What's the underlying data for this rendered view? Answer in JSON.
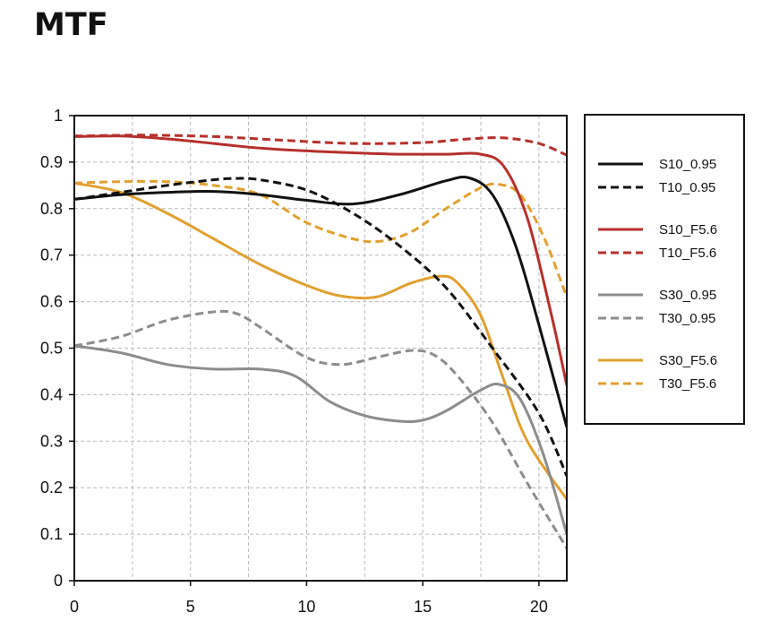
{
  "title": "MTF",
  "chart_data": {
    "type": "line",
    "title": "MTF",
    "xlabel": "",
    "ylabel": "",
    "xlim": [
      0,
      21.2
    ],
    "ylim": [
      0,
      1
    ],
    "x_ticks": [
      0,
      5,
      10,
      15,
      20
    ],
    "y_ticks": [
      0,
      0.1,
      0.2,
      0.3,
      0.4,
      0.5,
      0.6,
      0.7,
      0.8,
      0.9,
      1
    ],
    "x_tick_labels": [
      "0",
      "5",
      "10",
      "15",
      "20"
    ],
    "y_tick_labels": [
      "0",
      "0.1",
      "0.2",
      "0.3",
      "0.4",
      "0.5",
      "0.6",
      "0.7",
      "0.8",
      "0.9",
      "1"
    ],
    "grid": true,
    "legend_position": "right",
    "series": [
      {
        "name": "S10_0.95",
        "color": "#111111",
        "dash": "solid",
        "points": [
          [
            0,
            0.82
          ],
          [
            2,
            0.83
          ],
          [
            4,
            0.835
          ],
          [
            6,
            0.837
          ],
          [
            8,
            0.83
          ],
          [
            10,
            0.818
          ],
          [
            12,
            0.81
          ],
          [
            14,
            0.83
          ],
          [
            16,
            0.86
          ],
          [
            17,
            0.866
          ],
          [
            18,
            0.83
          ],
          [
            19,
            0.72
          ],
          [
            20,
            0.55
          ],
          [
            21.2,
            0.33
          ]
        ]
      },
      {
        "name": "T10_0.95",
        "color": "#111111",
        "dash": "dashed",
        "points": [
          [
            0,
            0.82
          ],
          [
            2,
            0.835
          ],
          [
            4,
            0.85
          ],
          [
            6,
            0.862
          ],
          [
            7,
            0.865
          ],
          [
            8,
            0.862
          ],
          [
            10,
            0.84
          ],
          [
            12,
            0.79
          ],
          [
            14,
            0.72
          ],
          [
            16,
            0.63
          ],
          [
            18,
            0.5
          ],
          [
            20,
            0.36
          ],
          [
            21.2,
            0.225
          ]
        ]
      },
      {
        "name": "S10_F5.6",
        "color": "#b5302b",
        "dash": "solid",
        "points": [
          [
            0,
            0.955
          ],
          [
            2,
            0.956
          ],
          [
            4,
            0.95
          ],
          [
            6,
            0.94
          ],
          [
            8,
            0.93
          ],
          [
            10,
            0.924
          ],
          [
            12,
            0.92
          ],
          [
            14,
            0.917
          ],
          [
            16,
            0.917
          ],
          [
            17.5,
            0.917
          ],
          [
            18.5,
            0.89
          ],
          [
            19.5,
            0.78
          ],
          [
            20.5,
            0.58
          ],
          [
            21.2,
            0.42
          ]
        ]
      },
      {
        "name": "T10_F5.6",
        "color": "#b5302b",
        "dash": "dashed",
        "points": [
          [
            0,
            0.956
          ],
          [
            3,
            0.958
          ],
          [
            6,
            0.955
          ],
          [
            9,
            0.947
          ],
          [
            12,
            0.94
          ],
          [
            15,
            0.942
          ],
          [
            17,
            0.95
          ],
          [
            18.5,
            0.952
          ],
          [
            20,
            0.94
          ],
          [
            21.2,
            0.915
          ]
        ]
      },
      {
        "name": "S30_0.95",
        "color": "#8c8c8c",
        "dash": "solid",
        "points": [
          [
            0,
            0.505
          ],
          [
            2,
            0.49
          ],
          [
            4,
            0.465
          ],
          [
            6,
            0.455
          ],
          [
            8,
            0.455
          ],
          [
            9.5,
            0.44
          ],
          [
            11,
            0.385
          ],
          [
            12.5,
            0.355
          ],
          [
            14,
            0.343
          ],
          [
            15,
            0.345
          ],
          [
            16,
            0.365
          ],
          [
            17.5,
            0.41
          ],
          [
            18.3,
            0.422
          ],
          [
            19.2,
            0.39
          ],
          [
            20.2,
            0.27
          ],
          [
            21.2,
            0.1
          ]
        ]
      },
      {
        "name": "T30_0.95",
        "color": "#8c8c8c",
        "dash": "dashed",
        "points": [
          [
            0,
            0.505
          ],
          [
            2,
            0.525
          ],
          [
            4,
            0.56
          ],
          [
            6,
            0.578
          ],
          [
            7,
            0.574
          ],
          [
            8,
            0.545
          ],
          [
            10,
            0.48
          ],
          [
            11.5,
            0.465
          ],
          [
            13,
            0.48
          ],
          [
            14.5,
            0.495
          ],
          [
            15.5,
            0.485
          ],
          [
            16.5,
            0.44
          ],
          [
            18,
            0.34
          ],
          [
            19.5,
            0.21
          ],
          [
            21.2,
            0.07
          ]
        ]
      },
      {
        "name": "S30_F5.6",
        "color": "#e0a030",
        "dash": "solid",
        "points": [
          [
            0,
            0.855
          ],
          [
            2,
            0.835
          ],
          [
            4,
            0.79
          ],
          [
            6,
            0.735
          ],
          [
            8,
            0.68
          ],
          [
            10,
            0.635
          ],
          [
            11.5,
            0.612
          ],
          [
            13,
            0.61
          ],
          [
            14.5,
            0.64
          ],
          [
            15.8,
            0.655
          ],
          [
            16.5,
            0.64
          ],
          [
            17.5,
            0.57
          ],
          [
            18.5,
            0.43
          ],
          [
            19.5,
            0.3
          ],
          [
            21.2,
            0.175
          ]
        ]
      },
      {
        "name": "T30_F5.6",
        "color": "#e0a030",
        "dash": "dashed",
        "points": [
          [
            0,
            0.855
          ],
          [
            2,
            0.858
          ],
          [
            4,
            0.858
          ],
          [
            6,
            0.85
          ],
          [
            8,
            0.83
          ],
          [
            10,
            0.77
          ],
          [
            12,
            0.735
          ],
          [
            13.2,
            0.73
          ],
          [
            14.5,
            0.75
          ],
          [
            16,
            0.8
          ],
          [
            17.5,
            0.845
          ],
          [
            18.3,
            0.852
          ],
          [
            19.2,
            0.83
          ],
          [
            20.2,
            0.74
          ],
          [
            21.2,
            0.61
          ]
        ]
      }
    ]
  }
}
